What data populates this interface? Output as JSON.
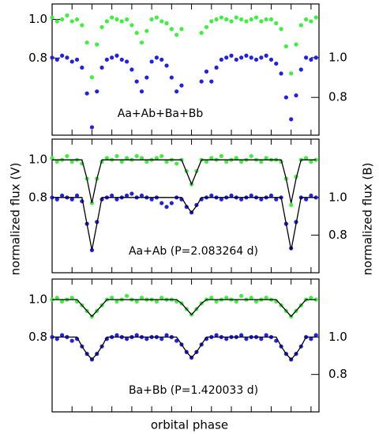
{
  "chart_data": [
    {
      "type": "scatter",
      "annotation": "Aa+Ab+Ba+Bb",
      "xlim": [
        -0.2,
        1.14
      ],
      "xticks": [
        -0.1,
        0,
        0.1,
        0.2,
        0.3,
        0.4,
        0.5,
        0.6,
        0.7,
        0.8,
        0.9,
        1,
        1.1
      ],
      "ylim": [
        0.4,
        1.08
      ],
      "yticks": [
        {
          "value": 1,
          "label": "1.0"
        },
        0.8
      ],
      "y2lim": [
        0.61,
        1.27
      ],
      "y2ticks": [
        {
          "value": 1,
          "label": "1.0"
        },
        0.8
      ],
      "x": [
        -0.2,
        -0.175,
        -0.15,
        -0.125,
        -0.1,
        -0.075,
        -0.05,
        -0.025,
        0,
        0.025,
        0.05,
        0.075,
        0.1,
        0.125,
        0.15,
        0.175,
        0.2,
        0.225,
        0.25,
        0.275,
        0.3,
        0.325,
        0.35,
        0.375,
        0.4,
        0.425,
        0.45,
        0.475,
        0.5,
        0.525,
        0.55,
        0.575,
        0.6,
        0.625,
        0.65,
        0.675,
        0.7,
        0.725,
        0.75,
        0.775,
        0.8,
        0.825,
        0.85,
        0.875,
        0.9,
        0.925,
        0.95,
        0.975,
        1,
        1.025,
        1.05,
        1.075,
        1.1,
        1.125
      ],
      "series": [
        {
          "style": "points",
          "color": "#3ef03e",
          "axis": "y",
          "values": [
            1.01,
            0.99,
            1.0,
            1.02,
            0.99,
            1.0,
            0.97,
            0.88,
            0.7,
            0.87,
            0.96,
            0.99,
            1.01,
            1.0,
            0.99,
            1.0,
            0.97,
            0.93,
            0.88,
            0.94,
            1.0,
            1.01,
            0.99,
            0.98,
            0.95,
            0.92,
            0.95,
            null,
            null,
            null,
            0.93,
            0.96,
            0.99,
            1.0,
            1.01,
            1.0,
            0.99,
            1.01,
            1.0,
            0.99,
            1.0,
            1.01,
            0.99,
            1.0,
            1.0,
            0.98,
            0.95,
            0.86,
            0.72,
            0.87,
            0.97,
            1.0,
            0.99,
            1.01
          ]
        },
        {
          "style": "points",
          "color": "#2020e8",
          "axis": "y2",
          "values": [
            1.0,
            0.99,
            1.01,
            1.0,
            0.98,
            0.99,
            0.95,
            0.82,
            0.65,
            0.83,
            0.95,
            0.99,
            1.0,
            1.01,
            0.99,
            0.98,
            0.94,
            0.88,
            0.83,
            0.9,
            0.98,
            1.0,
            0.99,
            0.96,
            0.9,
            0.83,
            0.86,
            null,
            null,
            null,
            0.88,
            0.93,
            0.88,
            0.95,
            0.99,
            1.0,
            1.01,
            0.99,
            1.0,
            1.01,
            1.0,
            0.99,
            1.0,
            1.01,
            0.99,
            0.97,
            0.92,
            0.8,
            0.69,
            0.81,
            0.94,
            1.0,
            0.99,
            1.0
          ]
        }
      ]
    },
    {
      "type": "scatter",
      "annotation": "Aa+Ab (P=2.083264 d)",
      "ylabel": "normalized flux (V)",
      "y2label": "normalized flux (B)",
      "xlim": [
        -0.2,
        1.14
      ],
      "xticks": [
        -0.1,
        0,
        0.1,
        0.2,
        0.3,
        0.4,
        0.5,
        0.6,
        0.7,
        0.8,
        0.9,
        1,
        1.1
      ],
      "ylim": [
        0.4,
        1.11
      ],
      "yticks": [
        {
          "value": 1,
          "label": "1.0"
        },
        0.8
      ],
      "y2lim": [
        0.6,
        1.31
      ],
      "y2ticks": [
        {
          "value": 1,
          "label": "1.0"
        },
        0.8
      ],
      "x": [
        -0.2,
        -0.175,
        -0.15,
        -0.125,
        -0.1,
        -0.075,
        -0.05,
        -0.025,
        0,
        0.025,
        0.05,
        0.075,
        0.1,
        0.125,
        0.15,
        0.175,
        0.2,
        0.225,
        0.25,
        0.275,
        0.3,
        0.325,
        0.35,
        0.375,
        0.4,
        0.425,
        0.45,
        0.475,
        0.5,
        0.525,
        0.55,
        0.575,
        0.6,
        0.625,
        0.65,
        0.675,
        0.7,
        0.725,
        0.75,
        0.775,
        0.8,
        0.825,
        0.85,
        0.875,
        0.9,
        0.925,
        0.95,
        0.975,
        1,
        1.025,
        1.05,
        1.075,
        1.1,
        1.125
      ],
      "series": [
        {
          "style": "points",
          "color": "#3ef03e",
          "axis": "y",
          "values": [
            1.01,
            0.99,
            1.0,
            1.02,
            0.99,
            1.0,
            0.98,
            0.9,
            0.77,
            0.9,
            0.99,
            1.01,
            1.0,
            1.02,
            0.99,
            1.01,
            1.0,
            1.02,
            1.01,
            0.99,
            1.0,
            1.01,
            1.02,
            0.99,
            1.0,
            0.98,
            1.0,
            0.94,
            0.87,
            0.94,
            1.0,
            0.99,
            1.01,
            1.0,
            1.02,
            0.99,
            1.0,
            1.01,
            0.99,
            1.0,
            1.02,
            1.0,
            0.99,
            1.01,
            1.0,
            1.0,
            0.99,
            0.9,
            0.76,
            0.91,
            1.0,
            1.01,
            0.99,
            1.0
          ]
        },
        {
          "style": "points",
          "color": "#2020e8",
          "axis": "y2",
          "values": [
            1.0,
            0.99,
            1.01,
            1.0,
            0.99,
            1.01,
            0.98,
            0.86,
            0.72,
            0.87,
            0.99,
            1.0,
            1.01,
            0.99,
            1.0,
            1.01,
            1.02,
            1.0,
            1.01,
            1.0,
            0.99,
            1.0,
            0.97,
            0.95,
            0.97,
            1.0,
            0.99,
            0.95,
            0.92,
            0.96,
            0.99,
            1.0,
            1.01,
            1.0,
            0.99,
            1.0,
            1.01,
            1.0,
            0.99,
            1.0,
            1.01,
            1.0,
            0.99,
            1.0,
            1.01,
            0.99,
            1.0,
            0.86,
            0.73,
            0.87,
            1.0,
            0.99,
            1.01,
            1.0
          ]
        },
        {
          "style": "line",
          "color": "#000000",
          "axis": "y",
          "values": [
            1,
            1,
            1,
            1,
            1,
            1,
            1,
            0.9,
            0.77,
            0.9,
            1,
            1,
            1,
            1,
            1,
            1,
            1,
            1,
            1,
            1,
            1,
            1,
            1,
            1,
            1,
            1,
            1,
            0.935,
            0.87,
            0.935,
            1,
            1,
            1,
            1,
            1,
            1,
            1,
            1,
            1,
            1,
            1,
            1,
            1,
            1,
            1,
            1,
            1,
            0.9,
            0.77,
            0.9,
            1,
            1,
            1,
            1
          ]
        },
        {
          "style": "line",
          "color": "#000000",
          "axis": "y2",
          "values": [
            1,
            1,
            1,
            1,
            1,
            1,
            1,
            0.86,
            0.72,
            0.86,
            1,
            1,
            1,
            1,
            1,
            1,
            1,
            1,
            1,
            1,
            1,
            1,
            1,
            1,
            1,
            1,
            1,
            0.955,
            0.92,
            0.955,
            1,
            1,
            1,
            1,
            1,
            1,
            1,
            1,
            1,
            1,
            1,
            1,
            1,
            1,
            1,
            1,
            1,
            0.86,
            0.72,
            0.86,
            1,
            1,
            1,
            1
          ]
        }
      ]
    },
    {
      "type": "scatter",
      "annotation": "Ba+Bb (P=1.420033 d)",
      "xlabel": "orbital phase",
      "xlim": [
        -0.2,
        1.14
      ],
      "xticks": [
        -0.1,
        0,
        0.1,
        0.2,
        0.3,
        0.4,
        0.5,
        0.6,
        0.7,
        0.8,
        0.9,
        1,
        1.1
      ],
      "ylim": [
        0.4,
        1.11
      ],
      "yticks": [
        {
          "value": 1,
          "label": "1.0"
        },
        0.8
      ],
      "y2lim": [
        0.6,
        1.31
      ],
      "y2ticks": [
        {
          "value": 1,
          "label": "1.0"
        },
        0.8
      ],
      "x": [
        -0.2,
        -0.175,
        -0.15,
        -0.125,
        -0.1,
        -0.075,
        -0.05,
        -0.025,
        0,
        0.025,
        0.05,
        0.075,
        0.1,
        0.125,
        0.15,
        0.175,
        0.2,
        0.225,
        0.25,
        0.275,
        0.3,
        0.325,
        0.35,
        0.375,
        0.4,
        0.425,
        0.45,
        0.475,
        0.5,
        0.525,
        0.55,
        0.575,
        0.6,
        0.625,
        0.65,
        0.675,
        0.7,
        0.725,
        0.75,
        0.775,
        0.8,
        0.825,
        0.85,
        0.875,
        0.9,
        0.925,
        0.95,
        0.975,
        1,
        1.025,
        1.05,
        1.075,
        1.1,
        1.125
      ],
      "series": [
        {
          "style": "points",
          "color": "#3ef03e",
          "axis": "y",
          "values": [
            1.0,
            1.01,
            0.99,
            1.0,
            1.01,
            0.99,
            0.97,
            0.94,
            0.91,
            0.94,
            0.97,
            1.0,
            1.01,
            0.99,
            1.0,
            1.02,
            1.0,
            0.99,
            1.01,
            1.0,
            1.0,
            0.99,
            1.01,
            1.0,
            1.0,
            0.99,
            0.98,
            0.95,
            0.92,
            0.95,
            0.98,
            1.0,
            1.01,
            0.99,
            1.0,
            1.01,
            1.0,
            0.99,
            1.02,
            1.0,
            1.01,
            0.99,
            1.0,
            1.01,
            1.0,
            0.99,
            0.97,
            0.94,
            0.91,
            0.94,
            0.97,
            1.0,
            1.01,
            1.0
          ]
        },
        {
          "style": "points",
          "color": "#2020e8",
          "axis": "y2",
          "values": [
            1.0,
            0.99,
            1.01,
            1.0,
            0.98,
            0.99,
            0.95,
            0.91,
            0.88,
            0.91,
            0.95,
            0.99,
            1.0,
            1.01,
            1.0,
            0.99,
            1.0,
            1.01,
            1.0,
            0.99,
            1.0,
            1.0,
            0.99,
            1.01,
            1.0,
            0.98,
            0.96,
            0.92,
            0.89,
            0.92,
            0.96,
            0.99,
            1.0,
            1.01,
            1.0,
            0.99,
            1.0,
            1.0,
            1.01,
            0.99,
            1.0,
            1.0,
            0.99,
            1.01,
            1.0,
            0.98,
            0.95,
            0.91,
            0.88,
            0.91,
            0.95,
            1.0,
            0.99,
            1.01
          ]
        },
        {
          "style": "line",
          "color": "#000000",
          "axis": "y",
          "values": [
            1,
            1,
            1,
            1,
            1,
            1,
            0.97,
            0.94,
            0.91,
            0.94,
            0.97,
            1,
            1,
            1,
            1,
            1,
            1,
            1,
            1,
            1,
            1,
            1,
            1,
            1,
            1,
            1,
            0.98,
            0.95,
            0.92,
            0.95,
            0.98,
            1,
            1,
            1,
            1,
            1,
            1,
            1,
            1,
            1,
            1,
            1,
            1,
            1,
            1,
            1,
            0.97,
            0.94,
            0.91,
            0.94,
            0.97,
            1,
            1,
            1
          ]
        },
        {
          "style": "line",
          "color": "#000000",
          "axis": "y2",
          "values": [
            1,
            1,
            1,
            1,
            1,
            1,
            0.95,
            0.91,
            0.88,
            0.91,
            0.95,
            1,
            1,
            1,
            1,
            1,
            1,
            1,
            1,
            1,
            1,
            1,
            1,
            1,
            1,
            1,
            0.96,
            0.92,
            0.89,
            0.92,
            0.96,
            1,
            1,
            1,
            1,
            1,
            1,
            1,
            1,
            1,
            1,
            1,
            1,
            1,
            1,
            1,
            0.95,
            0.91,
            0.88,
            0.91,
            0.95,
            1,
            1,
            1
          ]
        }
      ]
    }
  ]
}
